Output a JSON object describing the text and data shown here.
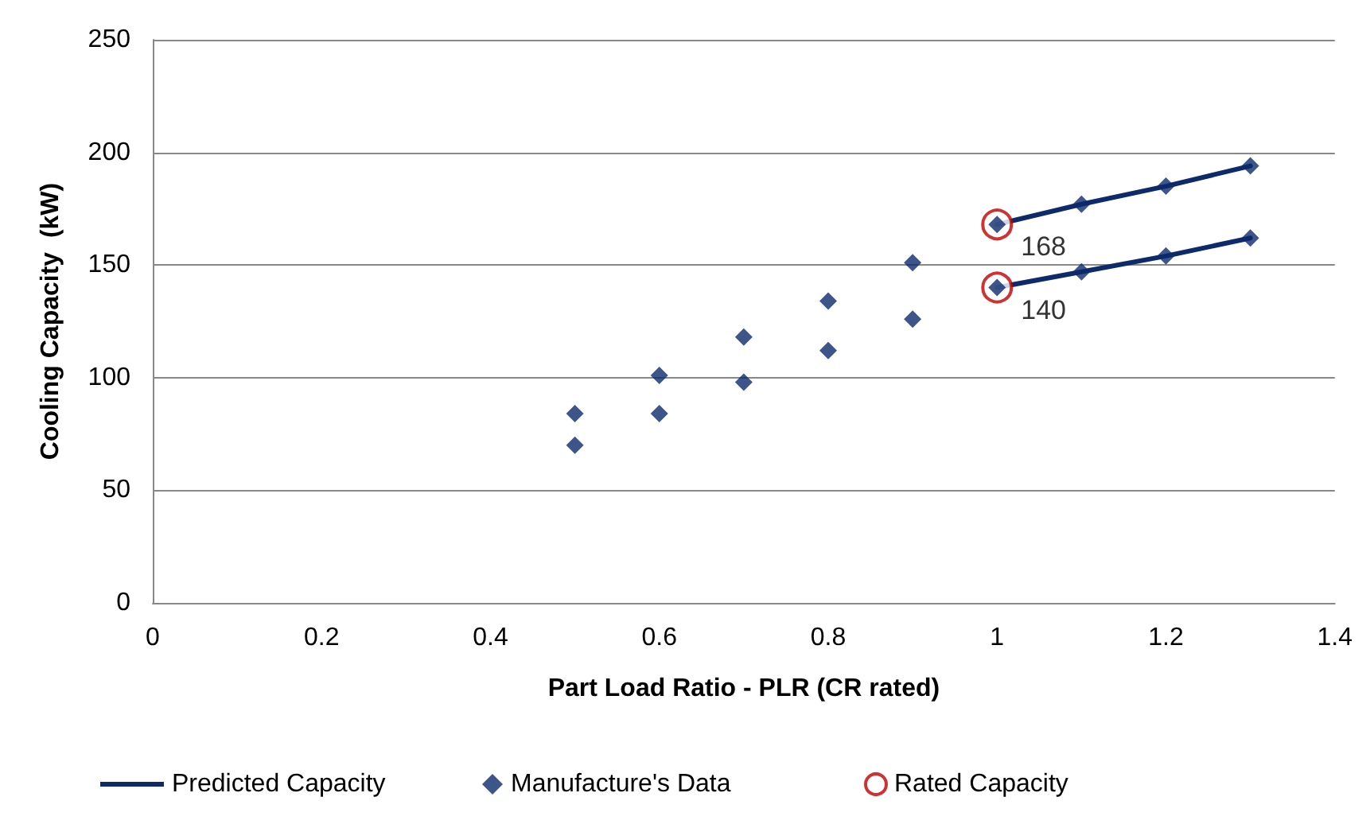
{
  "chart_data": {
    "type": "scatter",
    "xlabel": "Part Load Ratio - PLR (CR rated)",
    "ylabel": "Cooling Capacity  (kW)",
    "xlim": [
      0,
      1.4
    ],
    "xticks": [
      0,
      0.2,
      0.4,
      0.6,
      0.8,
      1,
      1.2,
      1.4
    ],
    "ylim": [
      0,
      250
    ],
    "yticks": [
      0,
      50,
      100,
      150,
      200,
      250
    ],
    "grid": "y",
    "legend": "bottom",
    "series": [
      {
        "name": "Predicted Capacity",
        "type": "line",
        "marker": "none",
        "color": "#0d2a6b",
        "x": [
          1,
          1.1,
          1.2,
          1.3
        ],
        "values": [
          168,
          177,
          185,
          194
        ]
      },
      {
        "type": "line",
        "marker": "none",
        "color": "#0d2a6b",
        "x": [
          1,
          1.1,
          1.2,
          1.3
        ],
        "values": [
          140,
          147,
          154,
          162
        ]
      },
      {
        "name": "Manufacture's Data",
        "marker": "diamond",
        "color": "#0d2a6b",
        "x": [
          0.5,
          0.5,
          0.6,
          0.6,
          0.7,
          0.7,
          0.8,
          0.8,
          0.9,
          0.9,
          1,
          1,
          1.1,
          1.1,
          1.2,
          1.2,
          1.3,
          1.3
        ],
        "values": [
          84,
          70,
          101,
          84,
          118,
          98,
          134,
          112,
          151,
          126,
          168,
          140,
          177,
          147,
          185,
          154,
          194,
          162
        ]
      },
      {
        "name": "Rated Capacity",
        "marker": "circle",
        "color": "#c00000",
        "x": [
          1,
          1
        ],
        "values": [
          168,
          140
        ],
        "value_labels": [
          "168",
          "140"
        ]
      }
    ]
  }
}
